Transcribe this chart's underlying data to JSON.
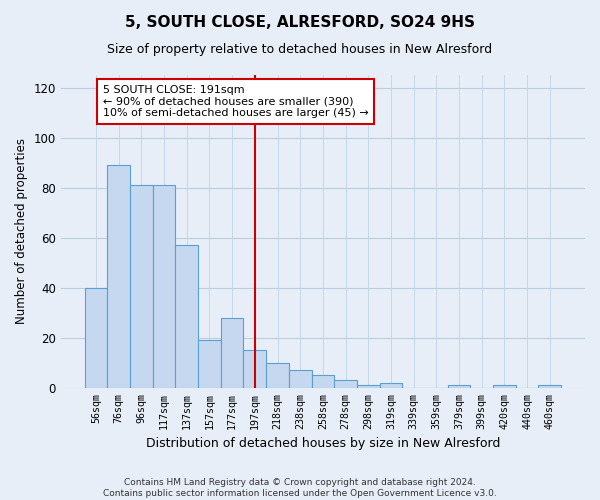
{
  "title": "5, SOUTH CLOSE, ALRESFORD, SO24 9HS",
  "subtitle": "Size of property relative to detached houses in New Alresford",
  "xlabel": "Distribution of detached houses by size in New Alresford",
  "ylabel": "Number of detached properties",
  "footer_line1": "Contains HM Land Registry data © Crown copyright and database right 2024.",
  "footer_line2": "Contains public sector information licensed under the Open Government Licence v3.0.",
  "bar_labels": [
    "56sqm",
    "76sqm",
    "96sqm",
    "117sqm",
    "137sqm",
    "157sqm",
    "177sqm",
    "197sqm",
    "218sqm",
    "238sqm",
    "258sqm",
    "278sqm",
    "298sqm",
    "319sqm",
    "339sqm",
    "359sqm",
    "379sqm",
    "399sqm",
    "420sqm",
    "440sqm",
    "460sqm"
  ],
  "bar_values": [
    40,
    89,
    81,
    81,
    57,
    19,
    28,
    15,
    10,
    7,
    5,
    3,
    1,
    2,
    0,
    0,
    1,
    0,
    1,
    0,
    1
  ],
  "bar_color": "#c5d8ef",
  "bar_edge_color": "#5a9fd4",
  "grid_color": "#b8cfe0",
  "background_color": "#e8eef8",
  "vline_x": 7.0,
  "vline_color": "#cc0000",
  "annotation_line1": "5 SOUTH CLOSE: 191sqm",
  "annotation_line2": "← 90% of detached houses are smaller (390)",
  "annotation_line3": "10% of semi-detached houses are larger (45) →",
  "annotation_box_color": "#cc0000",
  "ylim": [
    0,
    125
  ],
  "yticks": [
    0,
    20,
    40,
    60,
    80,
    100,
    120
  ]
}
